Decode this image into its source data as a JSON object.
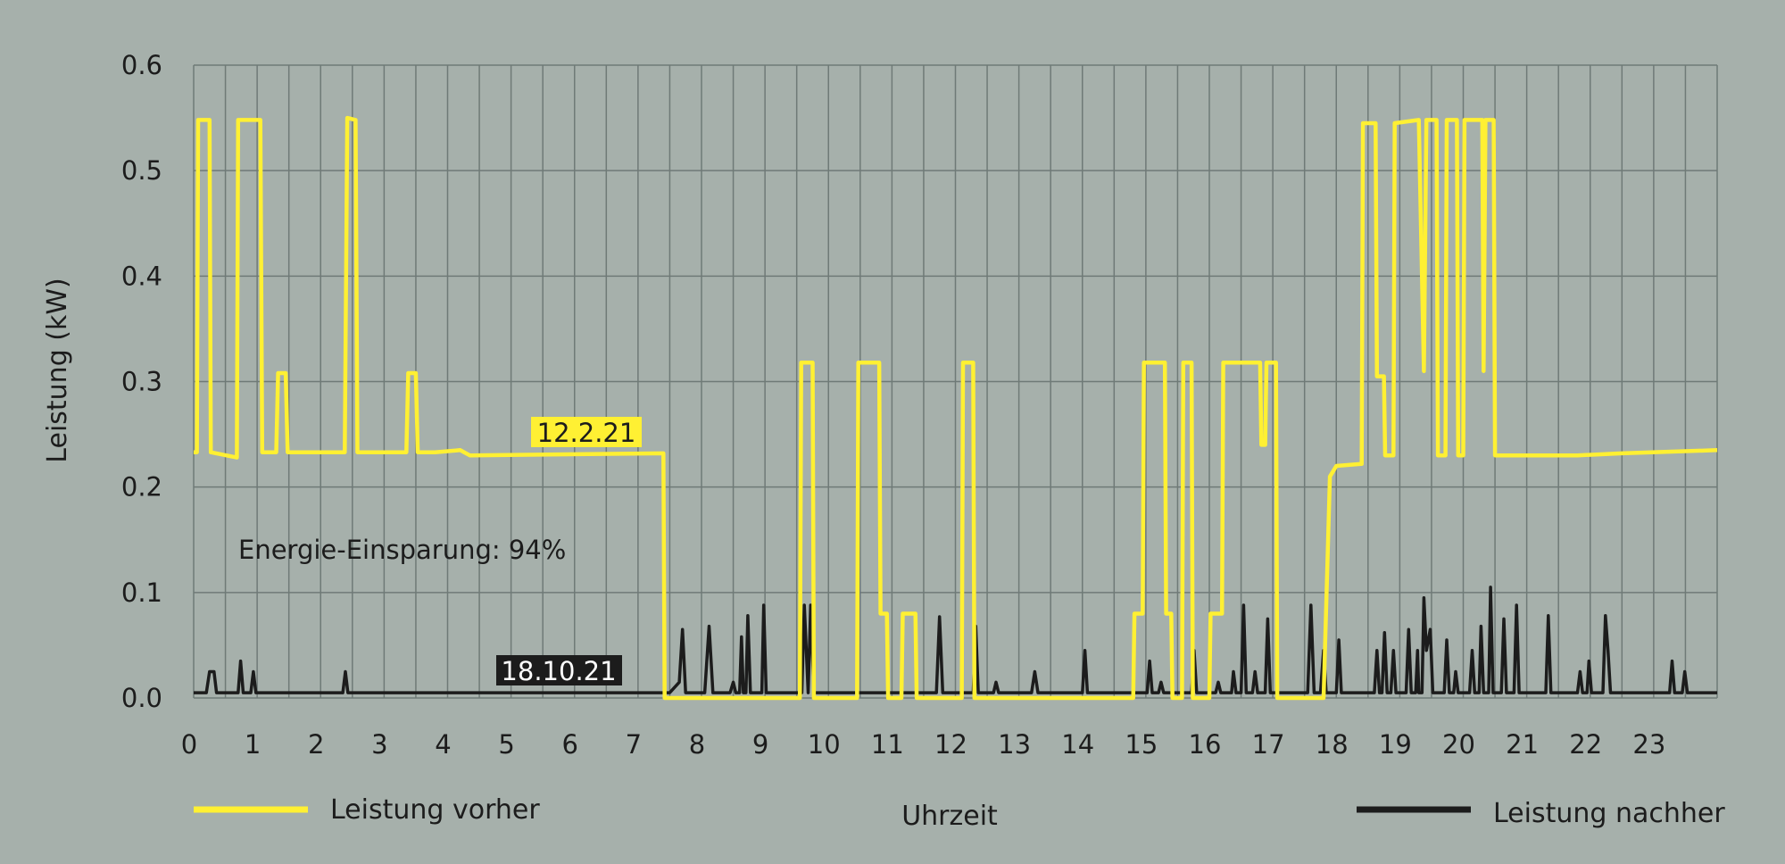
{
  "colors": {
    "background": "#a6b0ab",
    "grid": "#6f7a77",
    "before": "#fff033",
    "after": "#1c1c1c"
  },
  "chart_data": {
    "type": "line",
    "xlabel": "Uhrzeit",
    "ylabel": "Leistung (kW)",
    "xlim": [
      0,
      24
    ],
    "ylim": [
      0,
      0.6
    ],
    "x_ticks": [
      "0",
      "1",
      "2",
      "3",
      "4",
      "5",
      "6",
      "7",
      "8",
      "9",
      "10",
      "11",
      "12",
      "13",
      "14",
      "15",
      "16",
      "17",
      "18",
      "19",
      "20",
      "21",
      "22",
      "23"
    ],
    "y_ticks": [
      "0.0",
      "0.1",
      "0.2",
      "0.3",
      "0.4",
      "0.5",
      "0.6"
    ],
    "grid": true,
    "legend_placement": "bottom",
    "annotations": {
      "savings": "Energie-Einsparung: 94%",
      "before_date": "12.2.21",
      "after_date": "18.10.21"
    },
    "series": [
      {
        "name": "Leistung vorher",
        "color": "#fff033",
        "points": [
          [
            0.0,
            0.233
          ],
          [
            0.05,
            0.233
          ],
          [
            0.07,
            0.548
          ],
          [
            0.25,
            0.548
          ],
          [
            0.27,
            0.233
          ],
          [
            0.68,
            0.228
          ],
          [
            0.7,
            0.548
          ],
          [
            1.05,
            0.548
          ],
          [
            1.08,
            0.233
          ],
          [
            1.3,
            0.233
          ],
          [
            1.33,
            0.308
          ],
          [
            1.45,
            0.308
          ],
          [
            1.48,
            0.233
          ],
          [
            2.38,
            0.233
          ],
          [
            2.42,
            0.55
          ],
          [
            2.55,
            0.548
          ],
          [
            2.58,
            0.233
          ],
          [
            3.35,
            0.233
          ],
          [
            3.38,
            0.308
          ],
          [
            3.5,
            0.308
          ],
          [
            3.53,
            0.233
          ],
          [
            3.8,
            0.233
          ],
          [
            4.2,
            0.235
          ],
          [
            4.35,
            0.23
          ],
          [
            7.4,
            0.232
          ],
          [
            7.42,
            0.0
          ],
          [
            9.55,
            0.0
          ],
          [
            9.57,
            0.318
          ],
          [
            9.75,
            0.318
          ],
          [
            9.77,
            0.0
          ],
          [
            10.45,
            0.0
          ],
          [
            10.47,
            0.318
          ],
          [
            10.8,
            0.318
          ],
          [
            10.82,
            0.08
          ],
          [
            10.92,
            0.08
          ],
          [
            10.94,
            0.0
          ],
          [
            11.15,
            0.0
          ],
          [
            11.17,
            0.08
          ],
          [
            11.37,
            0.08
          ],
          [
            11.39,
            0.0
          ],
          [
            12.1,
            0.0
          ],
          [
            12.12,
            0.318
          ],
          [
            12.28,
            0.318
          ],
          [
            12.3,
            0.0
          ],
          [
            14.8,
            0.0
          ],
          [
            14.82,
            0.08
          ],
          [
            14.95,
            0.08
          ],
          [
            14.97,
            0.318
          ],
          [
            15.3,
            0.318
          ],
          [
            15.32,
            0.08
          ],
          [
            15.4,
            0.08
          ],
          [
            15.42,
            0.0
          ],
          [
            15.57,
            0.0
          ],
          [
            15.59,
            0.318
          ],
          [
            15.72,
            0.318
          ],
          [
            15.74,
            0.0
          ],
          [
            16.0,
            0.0
          ],
          [
            16.02,
            0.08
          ],
          [
            16.2,
            0.08
          ],
          [
            16.22,
            0.318
          ],
          [
            16.8,
            0.318
          ],
          [
            16.82,
            0.24
          ],
          [
            16.88,
            0.24
          ],
          [
            16.9,
            0.318
          ],
          [
            17.05,
            0.318
          ],
          [
            17.07,
            0.0
          ],
          [
            17.8,
            0.0
          ],
          [
            17.9,
            0.21
          ],
          [
            18.0,
            0.22
          ],
          [
            18.4,
            0.222
          ],
          [
            18.42,
            0.545
          ],
          [
            18.62,
            0.545
          ],
          [
            18.64,
            0.305
          ],
          [
            18.75,
            0.305
          ],
          [
            18.77,
            0.23
          ],
          [
            18.9,
            0.23
          ],
          [
            18.92,
            0.545
          ],
          [
            19.3,
            0.548
          ],
          [
            19.38,
            0.31
          ],
          [
            19.42,
            0.548
          ],
          [
            19.58,
            0.548
          ],
          [
            19.6,
            0.23
          ],
          [
            19.72,
            0.23
          ],
          [
            19.74,
            0.548
          ],
          [
            19.9,
            0.548
          ],
          [
            19.92,
            0.23
          ],
          [
            20.0,
            0.23
          ],
          [
            20.02,
            0.548
          ],
          [
            20.3,
            0.548
          ],
          [
            20.32,
            0.31
          ],
          [
            20.35,
            0.548
          ],
          [
            20.48,
            0.548
          ],
          [
            20.5,
            0.23
          ],
          [
            21.0,
            0.23
          ],
          [
            21.8,
            0.23
          ],
          [
            22.5,
            0.232
          ],
          [
            24.0,
            0.235
          ]
        ]
      },
      {
        "name": "Leistung nachher",
        "color": "#1c1c1c",
        "points": [
          [
            0.0,
            0.005
          ],
          [
            0.2,
            0.005
          ],
          [
            0.25,
            0.025
          ],
          [
            0.32,
            0.025
          ],
          [
            0.36,
            0.005
          ],
          [
            0.7,
            0.005
          ],
          [
            0.74,
            0.035
          ],
          [
            0.78,
            0.005
          ],
          [
            0.9,
            0.005
          ],
          [
            0.94,
            0.025
          ],
          [
            0.98,
            0.005
          ],
          [
            2.35,
            0.005
          ],
          [
            2.39,
            0.025
          ],
          [
            2.43,
            0.005
          ],
          [
            7.5,
            0.005
          ],
          [
            7.65,
            0.015
          ],
          [
            7.7,
            0.065
          ],
          [
            7.75,
            0.005
          ],
          [
            8.05,
            0.005
          ],
          [
            8.12,
            0.068
          ],
          [
            8.18,
            0.005
          ],
          [
            8.45,
            0.005
          ],
          [
            8.5,
            0.015
          ],
          [
            8.54,
            0.005
          ],
          [
            8.6,
            0.005
          ],
          [
            8.63,
            0.058
          ],
          [
            8.66,
            0.005
          ],
          [
            8.7,
            0.005
          ],
          [
            8.73,
            0.078
          ],
          [
            8.77,
            0.005
          ],
          [
            8.95,
            0.005
          ],
          [
            8.98,
            0.088
          ],
          [
            9.02,
            0.005
          ],
          [
            9.58,
            0.005
          ],
          [
            9.62,
            0.088
          ],
          [
            9.68,
            0.005
          ],
          [
            9.72,
            0.088
          ],
          [
            9.77,
            0.005
          ],
          [
            11.7,
            0.005
          ],
          [
            11.75,
            0.077
          ],
          [
            11.8,
            0.005
          ],
          [
            12.28,
            0.005
          ],
          [
            12.32,
            0.068
          ],
          [
            12.36,
            0.005
          ],
          [
            12.6,
            0.005
          ],
          [
            12.64,
            0.015
          ],
          [
            12.68,
            0.005
          ],
          [
            13.2,
            0.005
          ],
          [
            13.25,
            0.025
          ],
          [
            13.3,
            0.005
          ],
          [
            14.0,
            0.005
          ],
          [
            14.04,
            0.045
          ],
          [
            14.08,
            0.005
          ],
          [
            15.02,
            0.005
          ],
          [
            15.06,
            0.035
          ],
          [
            15.1,
            0.005
          ],
          [
            15.2,
            0.005
          ],
          [
            15.24,
            0.015
          ],
          [
            15.28,
            0.005
          ],
          [
            15.72,
            0.005
          ],
          [
            15.76,
            0.045
          ],
          [
            15.8,
            0.005
          ],
          [
            16.1,
            0.005
          ],
          [
            16.14,
            0.015
          ],
          [
            16.18,
            0.005
          ],
          [
            16.35,
            0.005
          ],
          [
            16.38,
            0.025
          ],
          [
            16.42,
            0.005
          ],
          [
            16.5,
            0.005
          ],
          [
            16.54,
            0.088
          ],
          [
            16.58,
            0.005
          ],
          [
            16.68,
            0.005
          ],
          [
            16.72,
            0.025
          ],
          [
            16.76,
            0.005
          ],
          [
            16.88,
            0.005
          ],
          [
            16.92,
            0.075
          ],
          [
            16.96,
            0.005
          ],
          [
            17.55,
            0.005
          ],
          [
            17.6,
            0.088
          ],
          [
            17.65,
            0.005
          ],
          [
            17.75,
            0.005
          ],
          [
            17.8,
            0.045
          ],
          [
            17.84,
            0.005
          ],
          [
            18.0,
            0.005
          ],
          [
            18.04,
            0.055
          ],
          [
            18.08,
            0.005
          ],
          [
            18.6,
            0.005
          ],
          [
            18.64,
            0.045
          ],
          [
            18.68,
            0.005
          ],
          [
            18.72,
            0.005
          ],
          [
            18.76,
            0.062
          ],
          [
            18.8,
            0.005
          ],
          [
            18.86,
            0.005
          ],
          [
            18.9,
            0.045
          ],
          [
            18.94,
            0.005
          ],
          [
            19.1,
            0.005
          ],
          [
            19.14,
            0.065
          ],
          [
            19.18,
            0.005
          ],
          [
            19.25,
            0.005
          ],
          [
            19.28,
            0.045
          ],
          [
            19.3,
            0.005
          ],
          [
            19.35,
            0.005
          ],
          [
            19.38,
            0.095
          ],
          [
            19.42,
            0.045
          ],
          [
            19.48,
            0.065
          ],
          [
            19.52,
            0.005
          ],
          [
            19.7,
            0.005
          ],
          [
            19.74,
            0.055
          ],
          [
            19.78,
            0.005
          ],
          [
            19.85,
            0.005
          ],
          [
            19.88,
            0.025
          ],
          [
            19.92,
            0.005
          ],
          [
            20.1,
            0.005
          ],
          [
            20.14,
            0.045
          ],
          [
            20.18,
            0.005
          ],
          [
            20.25,
            0.005
          ],
          [
            20.28,
            0.068
          ],
          [
            20.32,
            0.005
          ],
          [
            20.4,
            0.005
          ],
          [
            20.43,
            0.105
          ],
          [
            20.47,
            0.005
          ],
          [
            20.6,
            0.005
          ],
          [
            20.64,
            0.075
          ],
          [
            20.68,
            0.005
          ],
          [
            20.8,
            0.005
          ],
          [
            20.84,
            0.088
          ],
          [
            20.88,
            0.005
          ],
          [
            21.3,
            0.005
          ],
          [
            21.34,
            0.078
          ],
          [
            21.38,
            0.005
          ],
          [
            21.8,
            0.005
          ],
          [
            21.84,
            0.025
          ],
          [
            21.88,
            0.005
          ],
          [
            21.95,
            0.005
          ],
          [
            21.98,
            0.035
          ],
          [
            22.02,
            0.005
          ],
          [
            22.2,
            0.005
          ],
          [
            22.24,
            0.078
          ],
          [
            22.28,
            0.045
          ],
          [
            22.32,
            0.005
          ],
          [
            23.25,
            0.005
          ],
          [
            23.29,
            0.035
          ],
          [
            23.33,
            0.005
          ],
          [
            23.45,
            0.005
          ],
          [
            23.49,
            0.025
          ],
          [
            23.53,
            0.005
          ],
          [
            24.0,
            0.005
          ]
        ]
      }
    ]
  }
}
